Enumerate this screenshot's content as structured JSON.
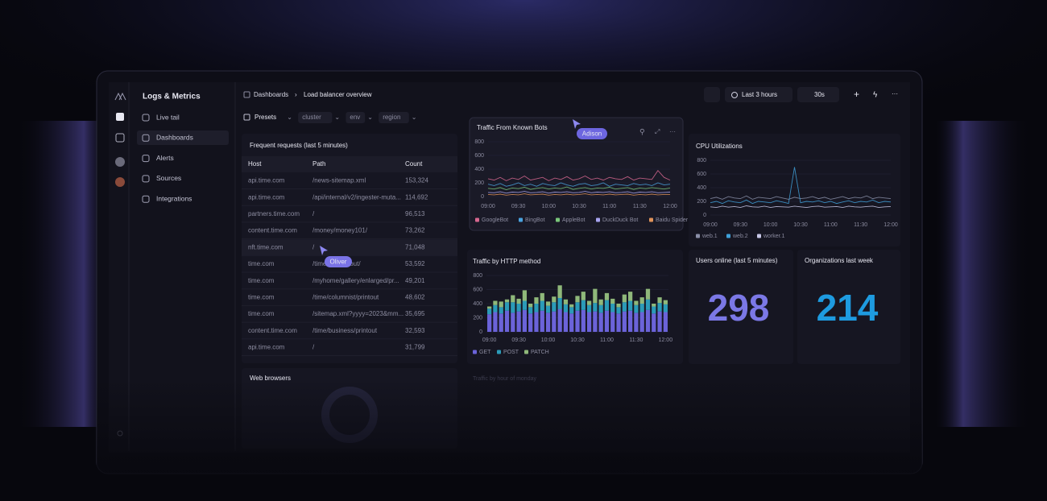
{
  "sidebar": {
    "title": "Logs & Metrics",
    "items": [
      "Live tail",
      "Dashboards",
      "Alerts",
      "Sources",
      "Integrations"
    ]
  },
  "breadcrumb": [
    "Dashboards",
    "Load balancer overview"
  ],
  "toolbar": {
    "time_range": "Last 3 hours",
    "refresh": "30s"
  },
  "filters": [
    "Presets",
    "cluster",
    "env",
    "region"
  ],
  "cursors": [
    "Adison",
    "Oliver"
  ],
  "table": {
    "title": "Frequent requests (last 5 minutes)",
    "columns": [
      "Host",
      "Path",
      "Count"
    ],
    "rows": [
      [
        "api.time.com",
        "/news-sitemap.xml",
        "153,324"
      ],
      [
        "api.time.com",
        "/api/internal/v2/ingester-muta...",
        "114,692"
      ],
      [
        "partners.time.com",
        "/",
        "96,513"
      ],
      [
        "content.time.com",
        "/money/money101/",
        "73,262"
      ],
      [
        "nft.time.com",
        "/",
        "71,048"
      ],
      [
        "time.com",
        "/time/...t/printout/",
        "53,592"
      ],
      [
        "time.com",
        "/myhome/gallery/enlarged/pr...",
        "49,201"
      ],
      [
        "time.com",
        "/time/columnist/printout",
        "48,602"
      ],
      [
        "time.com",
        "/sitemap.xml?yyyy=2023&mm...",
        "35,695"
      ],
      [
        "content.time.com",
        "/time/business/printout",
        "32,593"
      ],
      [
        "api.time.com",
        "/",
        "31,799"
      ]
    ]
  },
  "web_browsers": {
    "title": "Web browsers"
  },
  "traffic_by_hour": {
    "title": "Traffic by hour of monday"
  },
  "stats": [
    {
      "label": "Users online (last 5 minutes)",
      "value": 298,
      "color": "#7b78e6"
    },
    {
      "label": "Organizations last week",
      "value": 214,
      "color": "#1e9be0"
    }
  ],
  "chart_data": [
    {
      "type": "line",
      "title": "Traffic From Known Bots",
      "categories": [
        "09:00",
        null,
        null,
        null,
        null,
        "09:30",
        null,
        null,
        null,
        null,
        "10:00",
        null,
        null,
        null,
        null,
        "10:30",
        null,
        null,
        null,
        null,
        "11:00",
        null,
        null,
        null,
        null,
        "11:30",
        null,
        null,
        null,
        null,
        "12:00"
      ],
      "ylim": [
        0,
        800
      ],
      "yticks": [
        0,
        200,
        400,
        600,
        800
      ],
      "series": [
        {
          "name": "GoogleBot",
          "color": "#d7678f",
          "values": [
            260,
            240,
            280,
            230,
            270,
            250,
            300,
            240,
            260,
            280,
            230,
            270,
            250,
            290,
            240,
            260,
            300,
            250,
            270,
            240,
            280,
            260,
            250,
            290,
            240,
            270,
            260,
            250,
            380,
            280,
            240
          ]
        },
        {
          "name": "BingBot",
          "color": "#4aa3df",
          "values": [
            180,
            160,
            190,
            150,
            170,
            200,
            160,
            180,
            150,
            190,
            170,
            160,
            200,
            170,
            150,
            180,
            190,
            160,
            170,
            200,
            150,
            180,
            170,
            160,
            190,
            170,
            180,
            160,
            200,
            170,
            180
          ]
        },
        {
          "name": "AppleBot",
          "color": "#7ac77a",
          "values": [
            120,
            110,
            130,
            100,
            125,
            115,
            135,
            105,
            120,
            130,
            110,
            125,
            115,
            140,
            105,
            120,
            130,
            110,
            125,
            120,
            135,
            110,
            120,
            130,
            105,
            125,
            115,
            130,
            120,
            110,
            125
          ]
        },
        {
          "name": "DuckDuck Bot",
          "color": "#a8a4f0",
          "values": [
            60,
            55,
            70,
            50,
            65,
            60,
            75,
            55,
            60,
            70,
            50,
            65,
            60,
            70,
            55,
            60,
            75,
            55,
            65,
            60,
            70,
            55,
            60,
            70,
            50,
            65,
            60,
            70,
            55,
            60,
            65
          ]
        },
        {
          "name": "Baidu Spider",
          "color": "#e0935a",
          "values": [
            30,
            25,
            35,
            20,
            30,
            25,
            40,
            25,
            30,
            35,
            20,
            30,
            25,
            35,
            25,
            30,
            40,
            25,
            30,
            25,
            35,
            25,
            30,
            35,
            20,
            30,
            25,
            35,
            25,
            30,
            30
          ]
        }
      ]
    },
    {
      "type": "bar",
      "stacked": true,
      "title": "Traffic by HTTP method",
      "categories": [
        "09:00",
        null,
        null,
        null,
        null,
        "09:30",
        null,
        null,
        null,
        null,
        "10:00",
        null,
        null,
        null,
        null,
        "10:30",
        null,
        null,
        null,
        null,
        "11:00",
        null,
        null,
        null,
        null,
        "11:30",
        null,
        null,
        null,
        null,
        "12:00"
      ],
      "ylim": [
        0,
        800
      ],
      "yticks": [
        0,
        200,
        400,
        600,
        800
      ],
      "series": [
        {
          "name": "GET",
          "color": "#6b63d9",
          "values": [
            250,
            280,
            260,
            300,
            270,
            290,
            310,
            260,
            280,
            300,
            270,
            290,
            320,
            280,
            260,
            300,
            310,
            280,
            290,
            270,
            300,
            280,
            260,
            290,
            300,
            270,
            280,
            310,
            260,
            290,
            280
          ]
        },
        {
          "name": "POST",
          "color": "#2b9bb8",
          "values": [
            80,
            100,
            90,
            120,
            150,
            110,
            130,
            90,
            120,
            140,
            100,
            130,
            160,
            110,
            90,
            120,
            140,
            100,
            120,
            110,
            150,
            120,
            90,
            130,
            140,
            110,
            120,
            150,
            100,
            120,
            110
          ]
        },
        {
          "name": "PATCH",
          "color": "#8fb87a",
          "values": [
            30,
            60,
            80,
            40,
            100,
            70,
            150,
            50,
            90,
            110,
            60,
            80,
            180,
            70,
            40,
            90,
            120,
            60,
            200,
            80,
            100,
            70,
            50,
            110,
            130,
            60,
            90,
            150,
            40,
            80,
            60
          ]
        }
      ]
    },
    {
      "type": "line",
      "title": "CPU Utilizations",
      "categories": [
        "09:00",
        null,
        null,
        null,
        null,
        "09:30",
        null,
        null,
        null,
        null,
        "10:00",
        null,
        null,
        null,
        null,
        "10:30",
        null,
        null,
        null,
        null,
        "11:00",
        null,
        null,
        null,
        null,
        "11:30",
        null,
        null,
        null,
        null,
        "12:00"
      ],
      "ylim": [
        0,
        800
      ],
      "yticks": [
        0,
        200,
        400,
        600,
        800
      ],
      "series": [
        {
          "name": "web.1",
          "color": "#8a8fa8",
          "values": [
            240,
            260,
            230,
            270,
            250,
            240,
            280,
            230,
            260,
            250,
            240,
            270,
            250,
            230,
            260,
            240,
            250,
            270,
            240,
            260,
            230,
            250,
            270,
            240,
            260,
            250,
            280,
            240,
            260,
            250,
            240
          ]
        },
        {
          "name": "web.2",
          "color": "#3fa0d8",
          "values": [
            180,
            200,
            170,
            210,
            190,
            180,
            220,
            170,
            200,
            190,
            180,
            210,
            190,
            170,
            700,
            180,
            200,
            190,
            210,
            180,
            200,
            170,
            190,
            210,
            180,
            200,
            190,
            220,
            180,
            200,
            190
          ]
        },
        {
          "name": "worker.1",
          "color": "#c8c8e8",
          "values": [
            120,
            110,
            130,
            115,
            125,
            110,
            135,
            120,
            115,
            130,
            110,
            125,
            120,
            115,
            130,
            120,
            110,
            125,
            130,
            115,
            120,
            125,
            110,
            130,
            120,
            115,
            125,
            130,
            110,
            120,
            125
          ]
        }
      ]
    }
  ]
}
